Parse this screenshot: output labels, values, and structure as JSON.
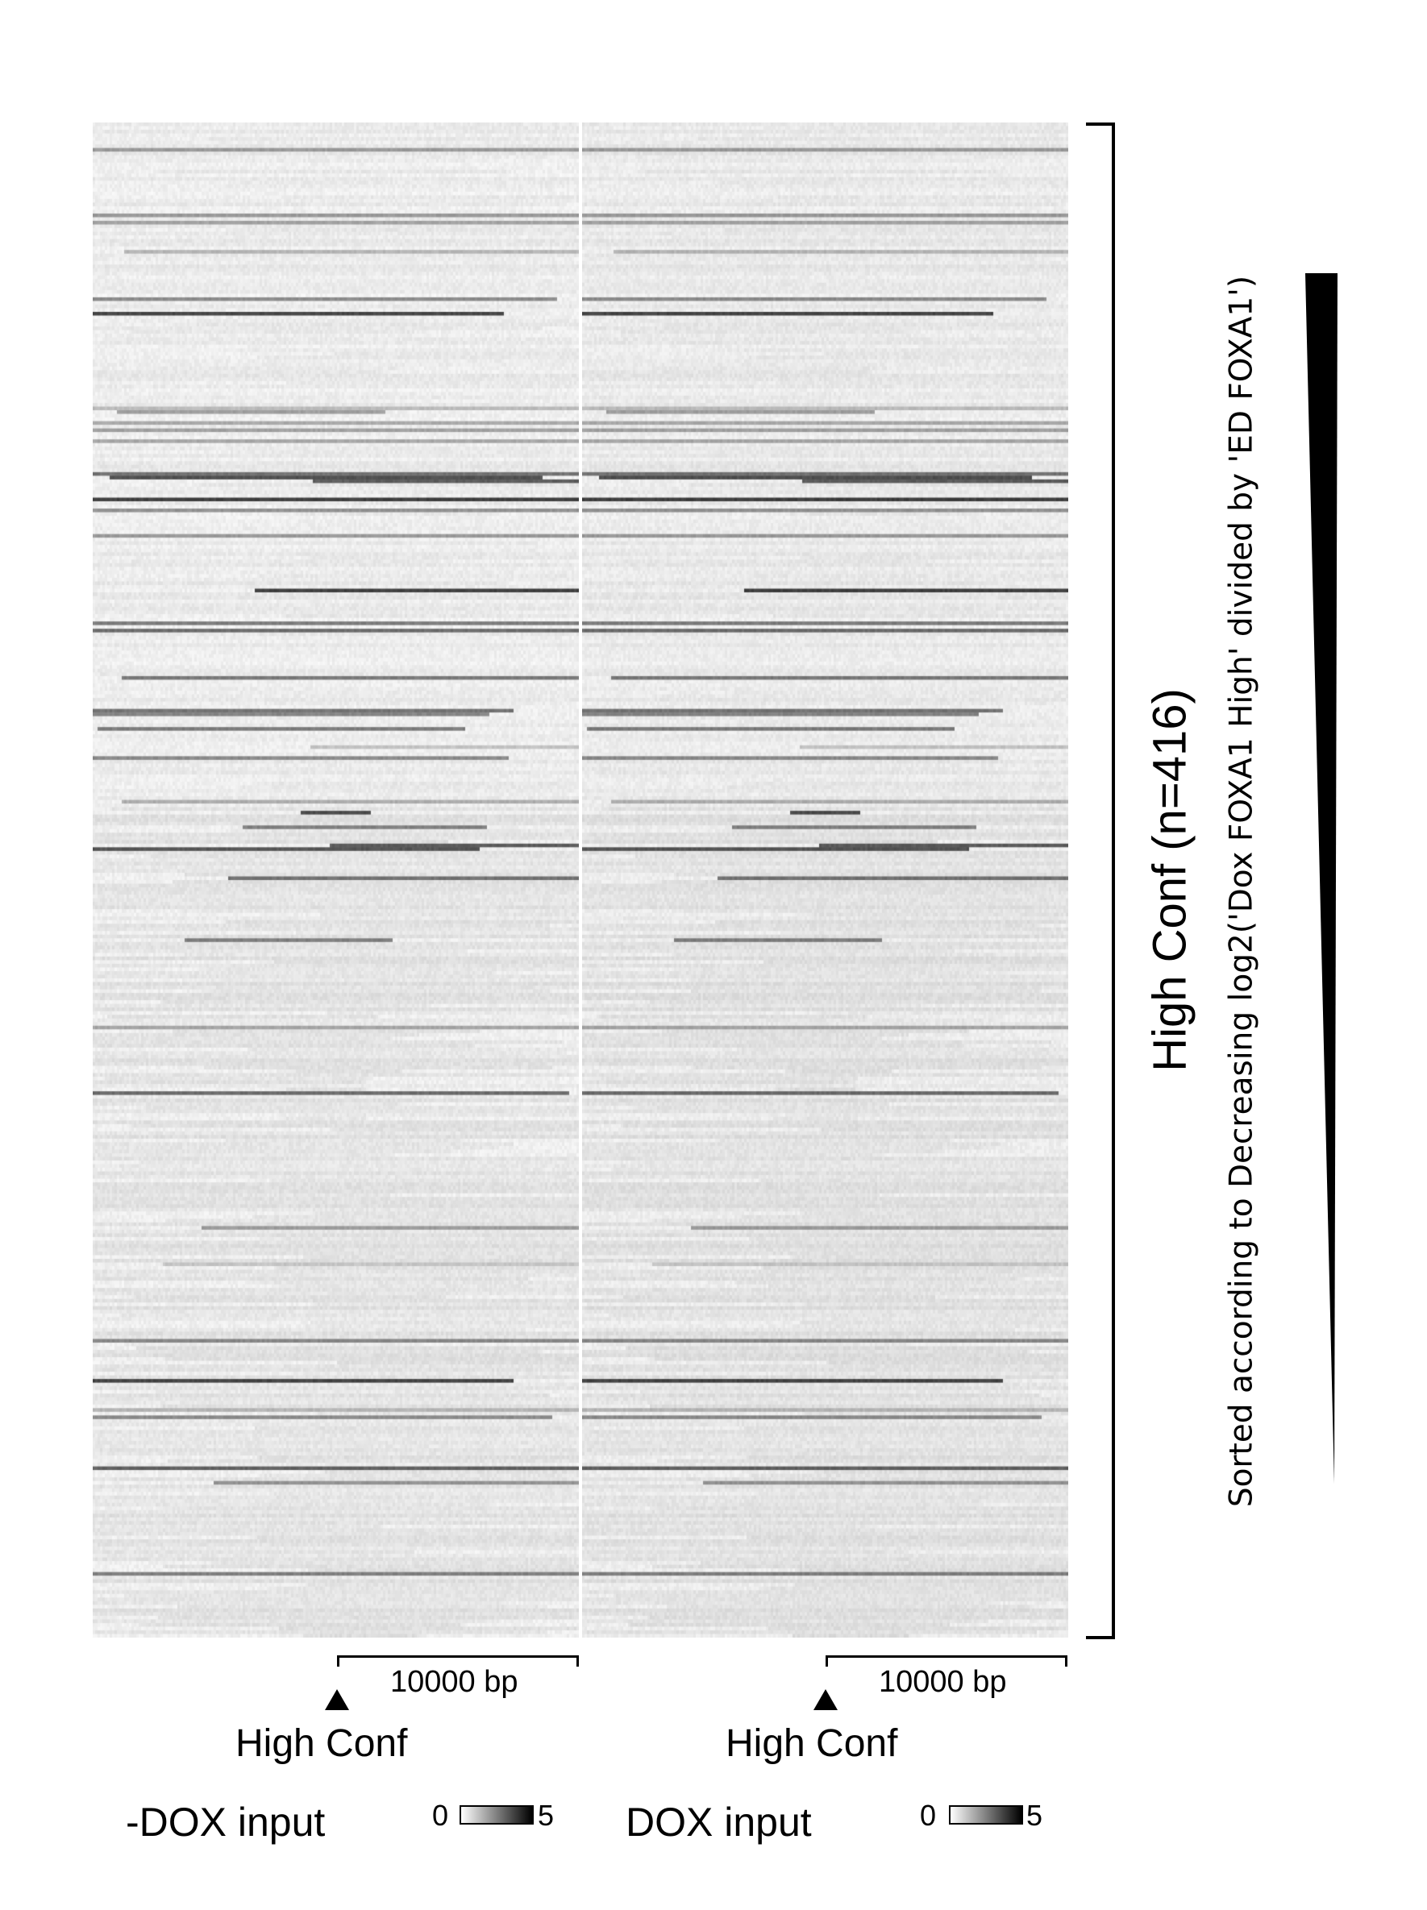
{
  "chart_data": {
    "type": "heatmap",
    "row_count": 416,
    "group_label": "High Conf (n=416)",
    "sort_label": "Sorted according to Decreasing log2('Dox FOXA1 High' divided by 'ED FOXA1')",
    "panels": [
      {
        "title": "-DOX input",
        "anchor_label": "High Conf",
        "scale_label": "10000 bp",
        "colorbar": {
          "min": "0",
          "max": "5",
          "min_value": 0,
          "max_value": 5,
          "low_color": "#ffffff",
          "high_color": "#000000"
        }
      },
      {
        "title": "DOX input",
        "anchor_label": "High Conf",
        "scale_label": "10000 bp",
        "colorbar": {
          "min": "0",
          "max": "5",
          "min_value": 0,
          "max_value": 5,
          "low_color": "#ffffff",
          "high_color": "#000000"
        }
      }
    ]
  }
}
